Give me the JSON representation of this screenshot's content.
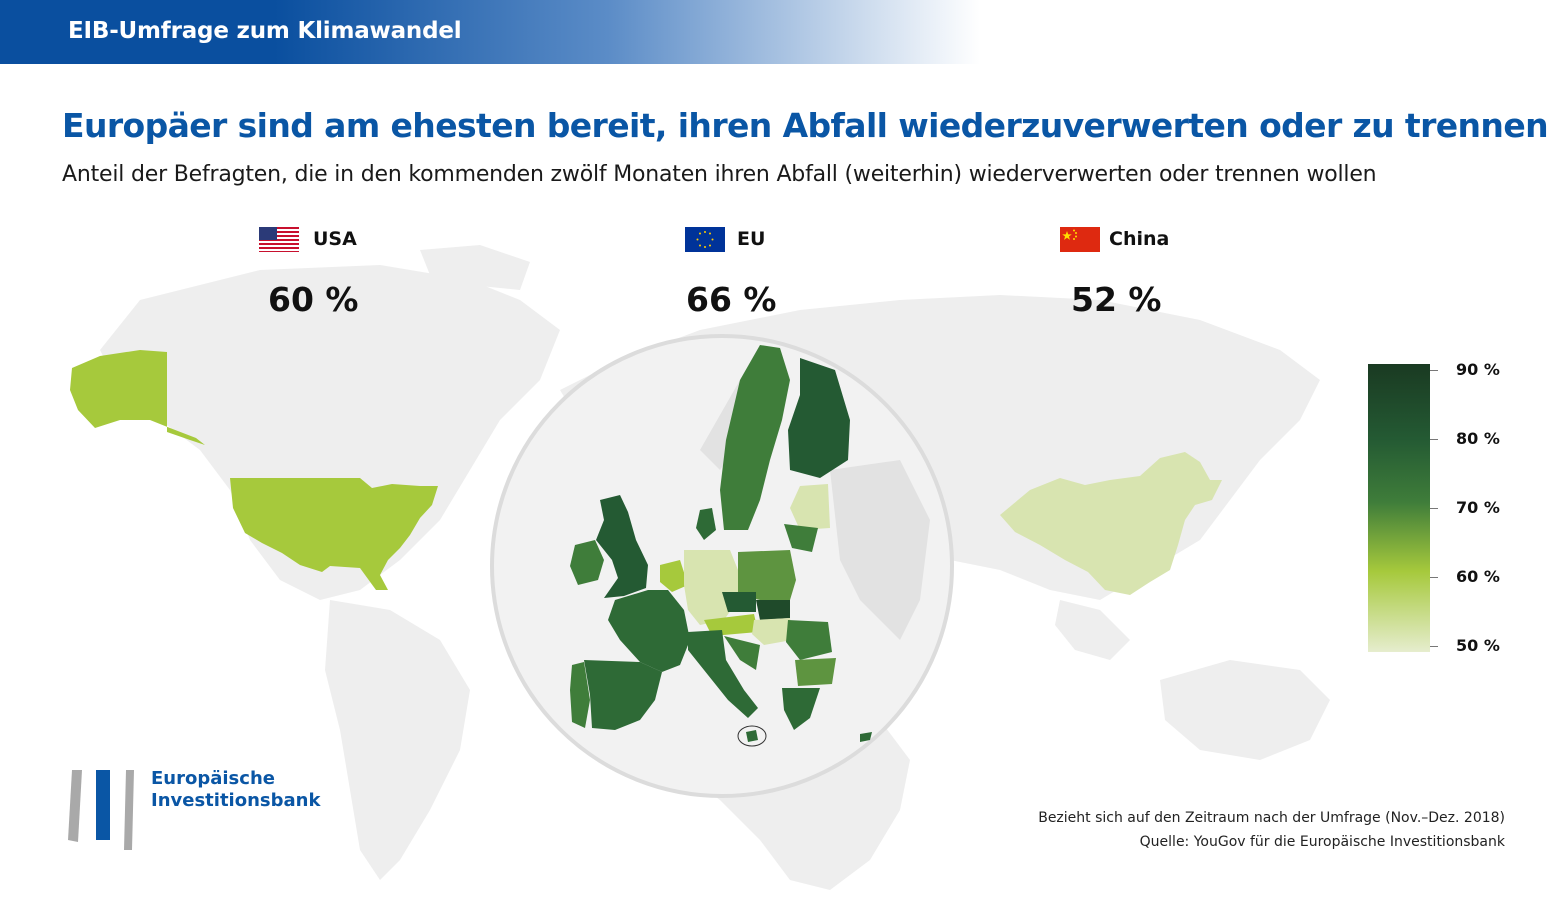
{
  "header": {
    "title": "EIB-Umfrage zum Klimawandel"
  },
  "headline": "Europäer sind am ehesten bereit, ihren Abfall wiederzuverwerten oder zu trennen",
  "subline": "Anteil der Befragten, die in den kommenden zwölf Monaten ihren Abfall (weiterhin) wiederverwerten oder trennen wollen",
  "regions": [
    {
      "label": "USA",
      "value": "60 %",
      "flag": "us-flag-icon"
    },
    {
      "label": "EU",
      "value": "66 %",
      "flag": "eu-flag-icon"
    },
    {
      "label": "China",
      "value": "52 %",
      "flag": "china-flag-icon"
    }
  ],
  "legend": {
    "labels": [
      "90 %",
      "80 %",
      "70 %",
      "60 %",
      "50 %"
    ]
  },
  "colors": {
    "brand_blue": "#0a56a5",
    "usa_fill": "#a6c93c",
    "china_fill": "#d8e4b0",
    "map_base": "#eeeeee"
  },
  "logo": {
    "line1": "Europäische",
    "line2": "Investitionsbank"
  },
  "footnotes": {
    "period": "Bezieht sich auf den Zeitraum nach der Umfrage (Nov.–Dez. 2018)",
    "source": "Quelle: YouGov für die Europäische Investitionsbank"
  }
}
